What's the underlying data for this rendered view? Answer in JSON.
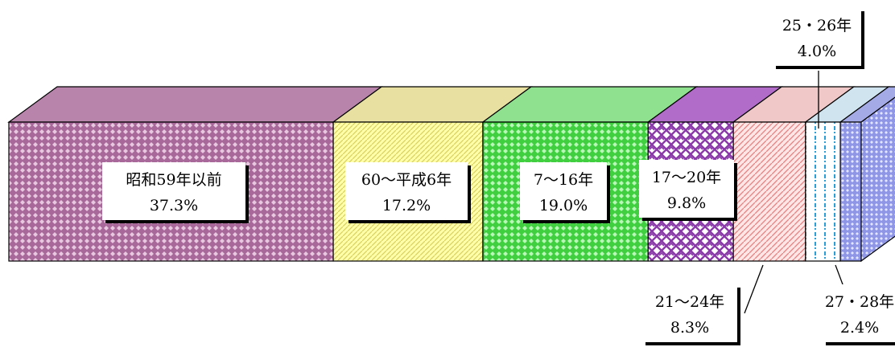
{
  "chart_data": {
    "type": "bar",
    "orientation": "horizontal-stacked-100",
    "style": "3d",
    "title": "",
    "xlabel": "",
    "ylabel": "",
    "legend": "none",
    "grid": false,
    "segments": [
      {
        "name": "昭和59年以前",
        "value": 37.3,
        "value_label": "37.3%",
        "color": "#a8689a",
        "pattern": "diamond"
      },
      {
        "name": "60～平成6年",
        "value": 17.2,
        "value_label": "17.2%",
        "color": "#ffff99",
        "pattern": "diagonal"
      },
      {
        "name": "7～16年",
        "value": 19.0,
        "value_label": "19.0%",
        "color": "#66ee66",
        "pattern": "diamond"
      },
      {
        "name": "17～20年",
        "value": 9.8,
        "value_label": "9.8%",
        "color": "#8a3aa8",
        "pattern": "weave"
      },
      {
        "name": "21～24年",
        "value": 8.3,
        "value_label": "8.3%",
        "color": "#ffcccc",
        "pattern": "diagonal"
      },
      {
        "name": "25・26年",
        "value": 4.0,
        "value_label": "4.0%",
        "color": "#ffffff",
        "pattern": "dashed-vertical"
      },
      {
        "name": "27・28年",
        "value": 2.4,
        "value_label": "2.4%",
        "color": "#aab0ee",
        "pattern": "diamond"
      }
    ]
  }
}
